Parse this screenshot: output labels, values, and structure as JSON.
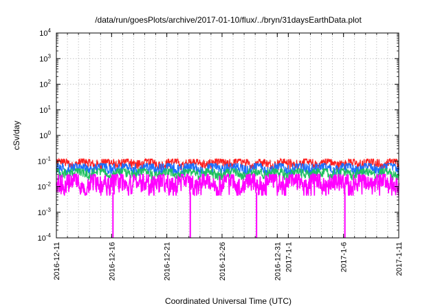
{
  "chart_data": {
    "type": "line",
    "title": "/data/run/goesPlots/archive/2017-01-10/flux/../bryn/31daysEarthData.plot",
    "xlabel": "Coordinated Universal Time (UTC)",
    "ylabel": "cSv/day",
    "yscale": "log",
    "ylim": [
      0.0001,
      10000
    ],
    "xlim": [
      "2016-12-11",
      "2017-01-11"
    ],
    "grid": true,
    "legend": "none",
    "x_ticks": [
      {
        "date": "2016-12-11",
        "label": "2016-12-11"
      },
      {
        "date": "2016-12-16",
        "label": "2016-12-16"
      },
      {
        "date": "2016-12-21",
        "label": "2016-12-21"
      },
      {
        "date": "2016-12-26",
        "label": "2016-12-26"
      },
      {
        "date": "2016-12-31",
        "label": "2016-12-31"
      },
      {
        "date": "2017-01-01",
        "label": "2017-1-1"
      },
      {
        "date": "2017-01-06",
        "label": "2017-1-6"
      },
      {
        "date": "2017-01-11",
        "label": "2017-1-11"
      }
    ],
    "y_ticks": [
      {
        "value": 0.0001,
        "base": "10",
        "exp": "-4"
      },
      {
        "value": 0.001,
        "base": "10",
        "exp": "-3"
      },
      {
        "value": 0.01,
        "base": "10",
        "exp": "-2"
      },
      {
        "value": 0.1,
        "base": "10",
        "exp": "-1"
      },
      {
        "value": 1,
        "base": "10",
        "exp": "0"
      },
      {
        "value": 10,
        "base": "10",
        "exp": "1"
      },
      {
        "value": 100,
        "base": "10",
        "exp": "2"
      },
      {
        "value": 1000,
        "base": "10",
        "exp": "3"
      },
      {
        "value": 10000,
        "base": "10",
        "exp": "4"
      }
    ],
    "series": [
      {
        "color": "#ff2020",
        "typical_range": [
          0.05,
          0.12
        ]
      },
      {
        "color": "#1a6fff",
        "typical_range": [
          0.03,
          0.08
        ]
      },
      {
        "color": "#20c060",
        "typical_range": [
          0.02,
          0.05
        ]
      },
      {
        "color": "#ff00ff",
        "typical_range": [
          0.005,
          0.03
        ]
      }
    ],
    "dropouts": [
      "2016-12-16",
      "2016-12-23",
      "2016-12-29",
      "2017-01-06"
    ]
  }
}
